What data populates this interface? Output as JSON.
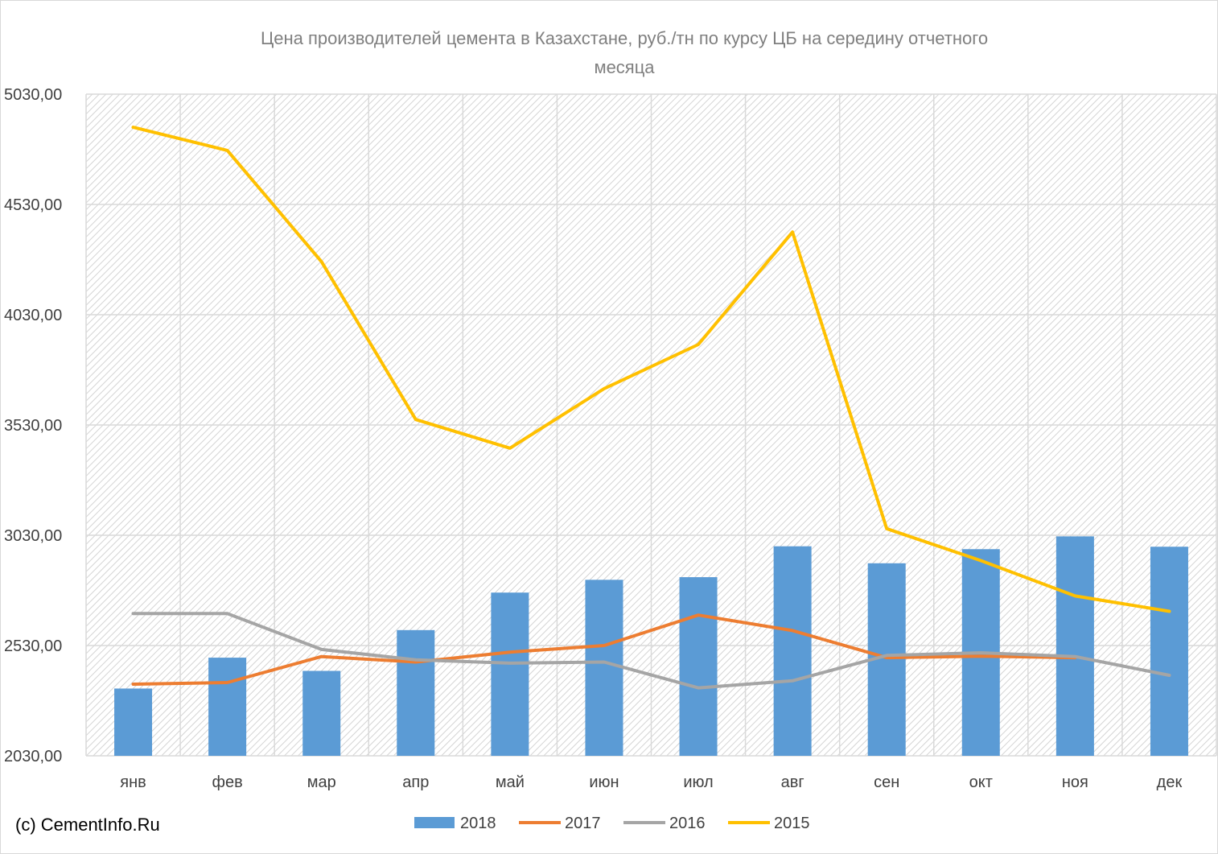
{
  "chart_data": {
    "type": "bar",
    "title_lines": [
      "Цена производителей цемента в Казахстане, руб./тн по курсу ЦБ на середину отчетного",
      "месяца"
    ],
    "categories": [
      "янв",
      "фев",
      "мар",
      "апр",
      "май",
      "июн",
      "июл",
      "авг",
      "сен",
      "окт",
      "ноя",
      "дек"
    ],
    "ylim": [
      2030,
      5030
    ],
    "yticks": [
      2030,
      2530,
      3030,
      3530,
      4030,
      4530,
      5030
    ],
    "ytick_labels": [
      "2030,00",
      "2530,00",
      "3030,00",
      "3530,00",
      "4030,00",
      "4530,00",
      "5030,00"
    ],
    "grid": true,
    "legend_position": "bottom",
    "series": [
      {
        "name": "2018",
        "kind": "bar",
        "color": "#5b9bd5",
        "values": [
          2335,
          2475,
          2415,
          2600,
          2770,
          2828,
          2840,
          2980,
          2903,
          2967,
          3025,
          2978
        ]
      },
      {
        "name": "2017",
        "kind": "line",
        "color": "#ed7d31",
        "values": [
          2355,
          2362,
          2480,
          2455,
          2500,
          2530,
          2668,
          2598,
          2475,
          2482,
          2475,
          null
        ]
      },
      {
        "name": "2016",
        "kind": "line",
        "color": "#a5a5a5",
        "values": [
          2675,
          2675,
          2512,
          2465,
          2450,
          2455,
          2338,
          2370,
          2485,
          2497,
          2480,
          2395
        ]
      },
      {
        "name": "2015",
        "kind": "line",
        "color": "#ffc000",
        "values": [
          4880,
          4775,
          4270,
          3555,
          3425,
          3695,
          3895,
          4405,
          3060,
          2915,
          2755,
          2685
        ]
      }
    ]
  },
  "credit": "(c) CementInfo.Ru"
}
